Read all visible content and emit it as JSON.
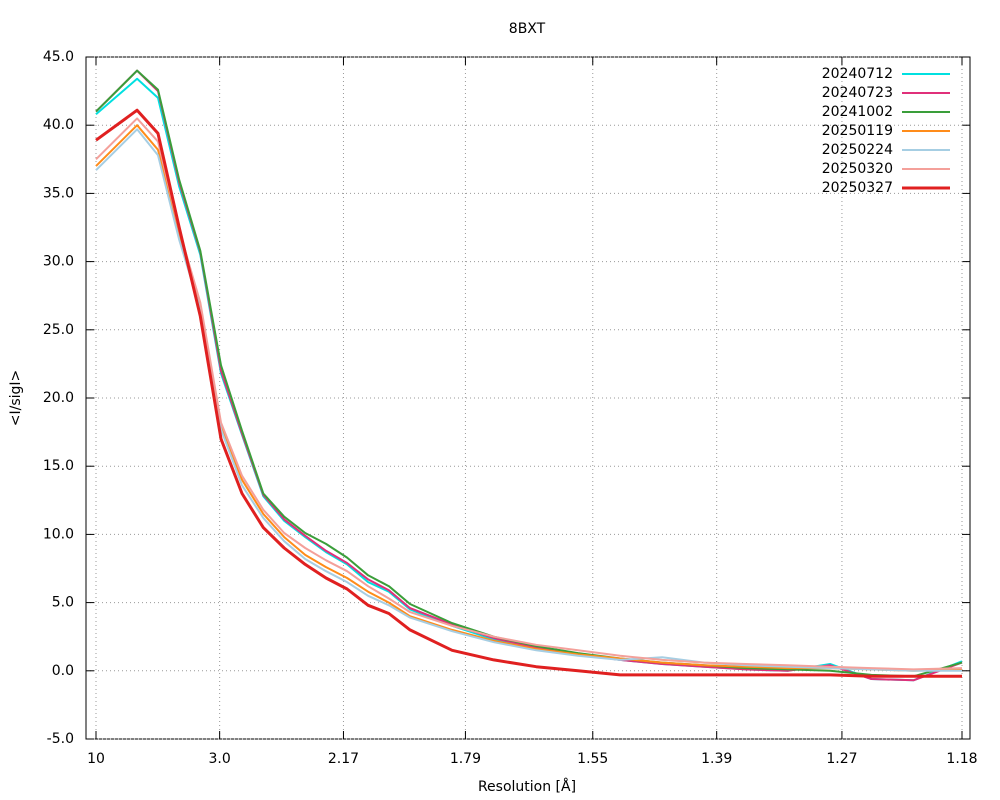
{
  "chart_data": {
    "type": "line",
    "title": "8BXT",
    "x_label": "Resolution [Å]",
    "y_label": "<I/sigI>",
    "x_scale": "inverse-square",
    "x": [
      10,
      4.79,
      4.06,
      3.58,
      3.24,
      2.985,
      2.78,
      2.61,
      2.47,
      2.35,
      2.247,
      2.155,
      2.074,
      2.002,
      1.936,
      1.822,
      1.727,
      1.644,
      1.573,
      1.51,
      1.454,
      1.404,
      1.359,
      1.318,
      1.28,
      1.246,
      1.214,
      1.18
    ],
    "xlim": [
      10,
      1.18
    ],
    "xticks": [
      10,
      {
        "value": 3,
        "label": "3.0"
      },
      2.17,
      1.79,
      1.55,
      1.39,
      1.27,
      1.18
    ],
    "ylim": [
      -5,
      45
    ],
    "yticks": [
      {
        "value": -5,
        "label": "-5.0"
      },
      {
        "value": 0,
        "label": "0.0"
      },
      {
        "value": 5,
        "label": "5.0"
      },
      {
        "value": 10,
        "label": "10.0"
      },
      {
        "value": 15,
        "label": "15.0"
      },
      {
        "value": 20,
        "label": "20.0"
      },
      {
        "value": 25,
        "label": "25.0"
      },
      {
        "value": 30,
        "label": "30.0"
      },
      {
        "value": 35,
        "label": "35.0"
      },
      {
        "value": 40,
        "label": "40.0"
      },
      {
        "value": 45,
        "label": "45.0"
      }
    ],
    "grid": true,
    "legend": "top-right",
    "series": [
      {
        "name": "20240712",
        "color": "#00e0e0",
        "values": [
          40.8,
          43.4,
          42.0,
          35.5,
          30.5,
          21.8,
          17.3,
          12.8,
          11.0,
          9.8,
          8.7,
          7.8,
          6.5,
          5.8,
          4.5,
          3.3,
          2.3,
          1.7,
          1.2,
          0.8,
          0.5,
          0.3,
          0.1,
          0.0,
          0.5,
          -0.6,
          -0.7,
          0.7
        ]
      },
      {
        "name": "20240723",
        "color": "#e0307a",
        "values": [
          41.0,
          44.0,
          42.5,
          35.8,
          30.7,
          22.0,
          17.4,
          12.9,
          11.1,
          9.9,
          8.8,
          7.9,
          6.7,
          5.9,
          4.6,
          3.4,
          2.4,
          1.7,
          1.2,
          0.8,
          0.5,
          0.3,
          0.1,
          0.0,
          0.4,
          -0.6,
          -0.7,
          0.6
        ]
      },
      {
        "name": "20241002",
        "color": "#3a9e3a",
        "values": [
          41.0,
          44.0,
          42.6,
          36.0,
          30.8,
          22.4,
          17.6,
          13.0,
          11.3,
          10.1,
          9.3,
          8.3,
          7.0,
          6.2,
          4.9,
          3.5,
          2.5,
          1.8,
          1.3,
          0.9,
          0.6,
          0.4,
          0.2,
          0.1,
          0.0,
          -0.3,
          -0.4,
          0.6
        ]
      },
      {
        "name": "20250119",
        "color": "#ff8c1a",
        "values": [
          37.0,
          40.0,
          38.2,
          32.0,
          26.8,
          18.0,
          14.0,
          11.5,
          9.8,
          8.5,
          7.6,
          6.8,
          5.8,
          5.0,
          4.0,
          3.0,
          2.2,
          1.6,
          1.2,
          0.9,
          0.6,
          0.4,
          0.3,
          0.2,
          0.2,
          0.1,
          0.0,
          0.1
        ]
      },
      {
        "name": "20250224",
        "color": "#a6cee3",
        "values": [
          36.7,
          39.7,
          37.8,
          31.6,
          26.5,
          17.7,
          13.6,
          11.2,
          9.5,
          8.2,
          7.3,
          6.5,
          5.5,
          4.8,
          3.9,
          2.9,
          2.1,
          1.5,
          1.1,
          0.8,
          1.0,
          0.6,
          0.4,
          0.3,
          0.2,
          0.1,
          0.0,
          0.0
        ]
      },
      {
        "name": "20250320",
        "color": "#f4a09a",
        "values": [
          37.5,
          40.5,
          38.8,
          32.3,
          27.0,
          18.2,
          14.3,
          11.8,
          10.1,
          9.0,
          8.1,
          7.3,
          6.2,
          5.3,
          4.3,
          3.3,
          2.5,
          1.9,
          1.5,
          1.1,
          0.8,
          0.6,
          0.5,
          0.4,
          0.3,
          0.2,
          0.1,
          0.2
        ]
      },
      {
        "name": "20250327",
        "color": "#e02020",
        "width": 3,
        "values": [
          38.9,
          41.1,
          39.4,
          32.5,
          26.0,
          17.0,
          13.0,
          10.5,
          9.0,
          7.8,
          6.8,
          6.0,
          4.8,
          4.2,
          3.0,
          1.5,
          0.8,
          0.3,
          0.0,
          -0.3,
          -0.3,
          -0.3,
          -0.3,
          -0.3,
          -0.3,
          -0.4,
          -0.4,
          -0.4
        ]
      }
    ]
  }
}
